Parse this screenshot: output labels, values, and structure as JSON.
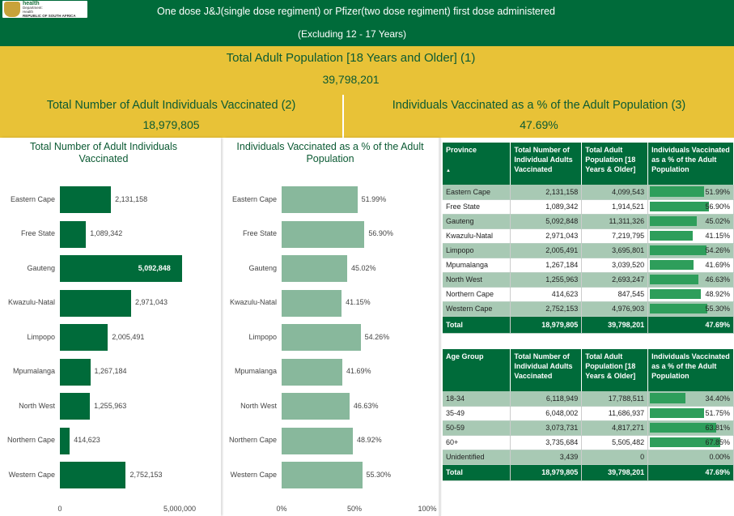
{
  "header": {
    "logo_text": [
      "health",
      "Department:",
      "Health",
      "REPUBLIC OF SOUTH AFRICA"
    ],
    "title": "One dose J&J(single dose regiment)  or Pfizer(two dose regiment) first dose administered",
    "subtitle": "(Excluding 12 - 17 Years)"
  },
  "kpis": {
    "population": {
      "label": "Total Adult Population [18 Years and Older] (1)",
      "value": "39,798,201"
    },
    "vaccinated": {
      "label": "Total Number of Adult Individuals Vaccinated (2)",
      "value": "18,979,805"
    },
    "percent": {
      "label": "Individuals Vaccinated as a % of the Adult Population (3)",
      "value": "47.69%"
    }
  },
  "colors": {
    "dark_green": "#006b3a",
    "light_green": "#88b89c",
    "gold": "#e8c237"
  },
  "chart_data": [
    {
      "type": "bar",
      "orientation": "horizontal",
      "title": "Total Number of Adult Individuals Vaccinated",
      "categories": [
        "Eastern Cape",
        "Free State",
        "Gauteng",
        "Kwazulu-Natal",
        "Limpopo",
        "Mpumalanga",
        "North West",
        "Northern Cape",
        "Western Cape"
      ],
      "values": [
        2131158,
        1089342,
        5092848,
        2971043,
        2005491,
        1267184,
        1255963,
        414623,
        2752153
      ],
      "labels": [
        "2,131,158",
        "1,089,342",
        "5,092,848",
        "2,971,043",
        "2,005,491",
        "1,267,184",
        "1,255,963",
        "414,623",
        "2,752,153"
      ],
      "xlim": [
        0,
        5000000
      ],
      "xticks": [
        "0",
        "5,000,000"
      ]
    },
    {
      "type": "bar",
      "orientation": "horizontal",
      "title": "Individuals Vaccinated as a % of the Adult Population",
      "categories": [
        "Eastern Cape",
        "Free State",
        "Gauteng",
        "Kwazulu-Natal",
        "Limpopo",
        "Mpumalanga",
        "North West",
        "Northern Cape",
        "Western Cape"
      ],
      "values": [
        51.99,
        56.9,
        45.02,
        41.15,
        54.26,
        41.69,
        46.63,
        48.92,
        55.3
      ],
      "labels": [
        "51.99%",
        "56.90%",
        "45.02%",
        "41.15%",
        "54.26%",
        "41.69%",
        "46.63%",
        "48.92%",
        "55.30%"
      ],
      "xlim": [
        0,
        100
      ],
      "xticks": [
        "0%",
        "50%",
        "100%"
      ]
    }
  ],
  "province_table": {
    "headers": [
      "Province",
      "Total Number of Individual Adults Vaccinated",
      "Total Adult Population [18 Years & Older]",
      "Individuals Vaccinated as a % of the Adult Population"
    ],
    "rows": [
      [
        "Eastern Cape",
        "2,131,158",
        "4,099,543",
        "51.99%"
      ],
      [
        "Free State",
        "1,089,342",
        "1,914,521",
        "56.90%"
      ],
      [
        "Gauteng",
        "5,092,848",
        "11,311,326",
        "45.02%"
      ],
      [
        "Kwazulu-Natal",
        "2,971,043",
        "7,219,795",
        "41.15%"
      ],
      [
        "Limpopo",
        "2,005,491",
        "3,695,801",
        "54.26%"
      ],
      [
        "Mpumalanga",
        "1,267,184",
        "3,039,520",
        "41.69%"
      ],
      [
        "North West",
        "1,255,963",
        "2,693,247",
        "46.63%"
      ],
      [
        "Northern Cape",
        "414,623",
        "847,545",
        "48.92%"
      ],
      [
        "Western Cape",
        "2,752,153",
        "4,976,903",
        "55.30%"
      ]
    ],
    "pct_values": [
      51.99,
      56.9,
      45.02,
      41.15,
      54.26,
      41.69,
      46.63,
      48.92,
      55.3
    ],
    "total": [
      "Total",
      "18,979,805",
      "39,798,201",
      "47.69%"
    ]
  },
  "age_table": {
    "headers": [
      "Age Group",
      "Total Number of Individual Adults Vaccinated",
      "Total Adult Population [18 Years & Older]",
      "Individuals Vaccinated as a % of the Adult Population"
    ],
    "rows": [
      [
        "18-34",
        "6,118,949",
        "17,788,511",
        "34.40%"
      ],
      [
        "35-49",
        "6,048,002",
        "11,686,937",
        "51.75%"
      ],
      [
        "50-59",
        "3,073,731",
        "4,817,271",
        "63.81%"
      ],
      [
        "60+",
        "3,735,684",
        "5,505,482",
        "67.85%"
      ],
      [
        "Unidentified",
        "3,439",
        "0",
        "0.00%"
      ]
    ],
    "pct_values": [
      34.4,
      51.75,
      63.81,
      67.85,
      0.0
    ],
    "total": [
      "Total",
      "18,979,805",
      "39,798,201",
      "47.69%"
    ]
  }
}
